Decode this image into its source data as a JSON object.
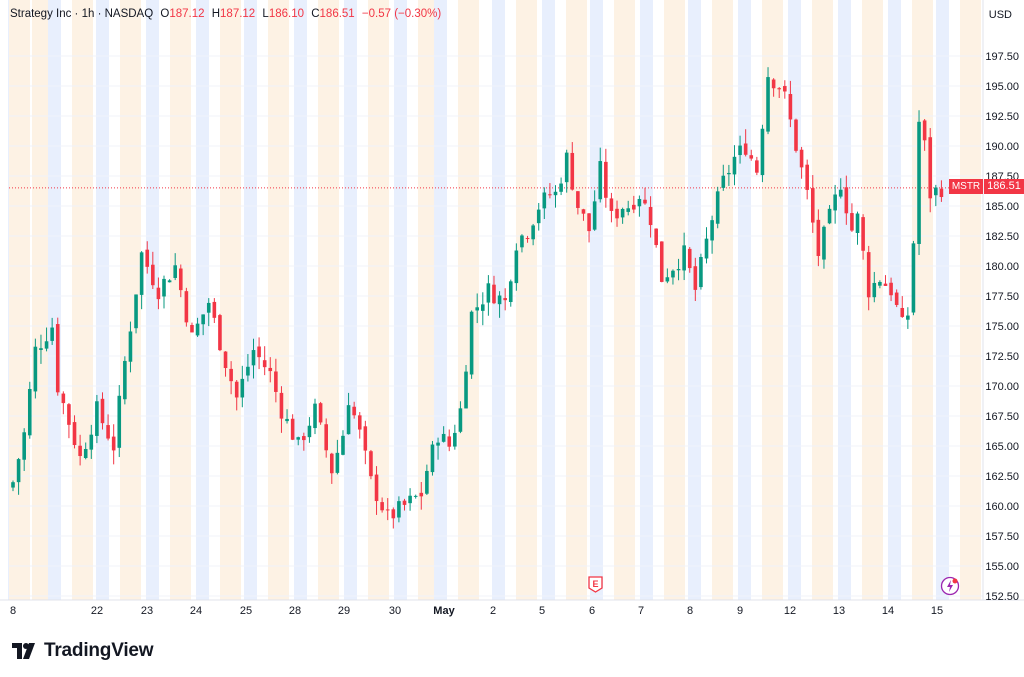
{
  "header": {
    "title": "Strategy Inc · 1h · NASDAQ",
    "o_label": "O",
    "o_value": "187.12",
    "h_label": "H",
    "h_value": "187.12",
    "l_label": "L",
    "l_value": "186.10",
    "c_label": "C",
    "c_value": "186.51",
    "change": "−0.57 (−0.30%)"
  },
  "currency": "USD",
  "last_price_tag": {
    "symbol": "MSTR",
    "value": "186.51"
  },
  "branding": "TradingView",
  "events": [
    {
      "type": "earnings",
      "label": "E",
      "x_index": 11
    },
    {
      "type": "dividend",
      "icon": "dividend-icon",
      "x_index": 18
    }
  ],
  "colors": {
    "up": "#089981",
    "down": "#f23645",
    "session_pre": "#e8effd",
    "session_post": "#fdf2e4",
    "grid": "#f0f3fa"
  },
  "chart_data": {
    "type": "candlestick",
    "symbol": "MSTR",
    "interval": "1h",
    "ylim": [
      152.5,
      200
    ],
    "y_ticks": [
      "152.50",
      "155.00",
      "157.50",
      "160.00",
      "162.50",
      "165.00",
      "167.50",
      "170.00",
      "172.50",
      "175.00",
      "177.50",
      "180.00",
      "182.50",
      "185.00",
      "187.50",
      "190.00",
      "192.50",
      "195.00",
      "197.50"
    ],
    "x_ticks": [
      "8",
      "22",
      "23",
      "24",
      "25",
      "28",
      "29",
      "30",
      "May",
      "2",
      "5",
      "6",
      "7",
      "8",
      "9",
      "12",
      "13",
      "14",
      "15"
    ],
    "last_price": 186.51,
    "session_anchors": [
      [
        0,
        162
      ],
      [
        2,
        166
      ],
      [
        4,
        173
      ],
      [
        7,
        175
      ],
      [
        8,
        170
      ],
      [
        12,
        164
      ],
      [
        15,
        168
      ],
      [
        18,
        165
      ],
      [
        20,
        172
      ],
      [
        23,
        181
      ],
      [
        26,
        178
      ],
      [
        29,
        180
      ],
      [
        32,
        174
      ],
      [
        35,
        177
      ],
      [
        38,
        172
      ],
      [
        40,
        169
      ],
      [
        43,
        173
      ],
      [
        46,
        171
      ],
      [
        48,
        168
      ],
      [
        51,
        165
      ],
      [
        54,
        168
      ],
      [
        57,
        163
      ],
      [
        59,
        166
      ],
      [
        60,
        169
      ],
      [
        62,
        166
      ],
      [
        64,
        162
      ],
      [
        67,
        159
      ],
      [
        70,
        160
      ],
      [
        73,
        161
      ],
      [
        74,
        163
      ],
      [
        76,
        166
      ],
      [
        78,
        165
      ],
      [
        80,
        168
      ],
      [
        82,
        176
      ],
      [
        85,
        178
      ],
      [
        88,
        177
      ],
      [
        90,
        182
      ],
      [
        92,
        183
      ],
      [
        94,
        185
      ],
      [
        96,
        186
      ],
      [
        97,
        186
      ],
      [
        99,
        189
      ],
      [
        101,
        185
      ],
      [
        103,
        183
      ],
      [
        105,
        188
      ],
      [
        107,
        184
      ],
      [
        109,
        185
      ],
      [
        110,
        185
      ],
      [
        112,
        186
      ],
      [
        114,
        184
      ],
      [
        116,
        179
      ],
      [
        118,
        180
      ],
      [
        120,
        181
      ],
      [
        122,
        178
      ],
      [
        123,
        180
      ],
      [
        125,
        184
      ],
      [
        127,
        187
      ],
      [
        129,
        189
      ],
      [
        131,
        190
      ],
      [
        133,
        188
      ],
      [
        134,
        192
      ],
      [
        135,
        196
      ],
      [
        137,
        195
      ],
      [
        138,
        194
      ],
      [
        139,
        192
      ],
      [
        140,
        190
      ],
      [
        142,
        186
      ],
      [
        144,
        181
      ],
      [
        146,
        184
      ],
      [
        148,
        187
      ],
      [
        150,
        183
      ],
      [
        151,
        184
      ],
      [
        153,
        178
      ],
      [
        155,
        179
      ],
      [
        157,
        178
      ],
      [
        159,
        175
      ],
      [
        160,
        176
      ],
      [
        161,
        182
      ],
      [
        162,
        192
      ],
      [
        163,
        190
      ],
      [
        164,
        186
      ],
      [
        166,
        186.51
      ]
    ]
  }
}
